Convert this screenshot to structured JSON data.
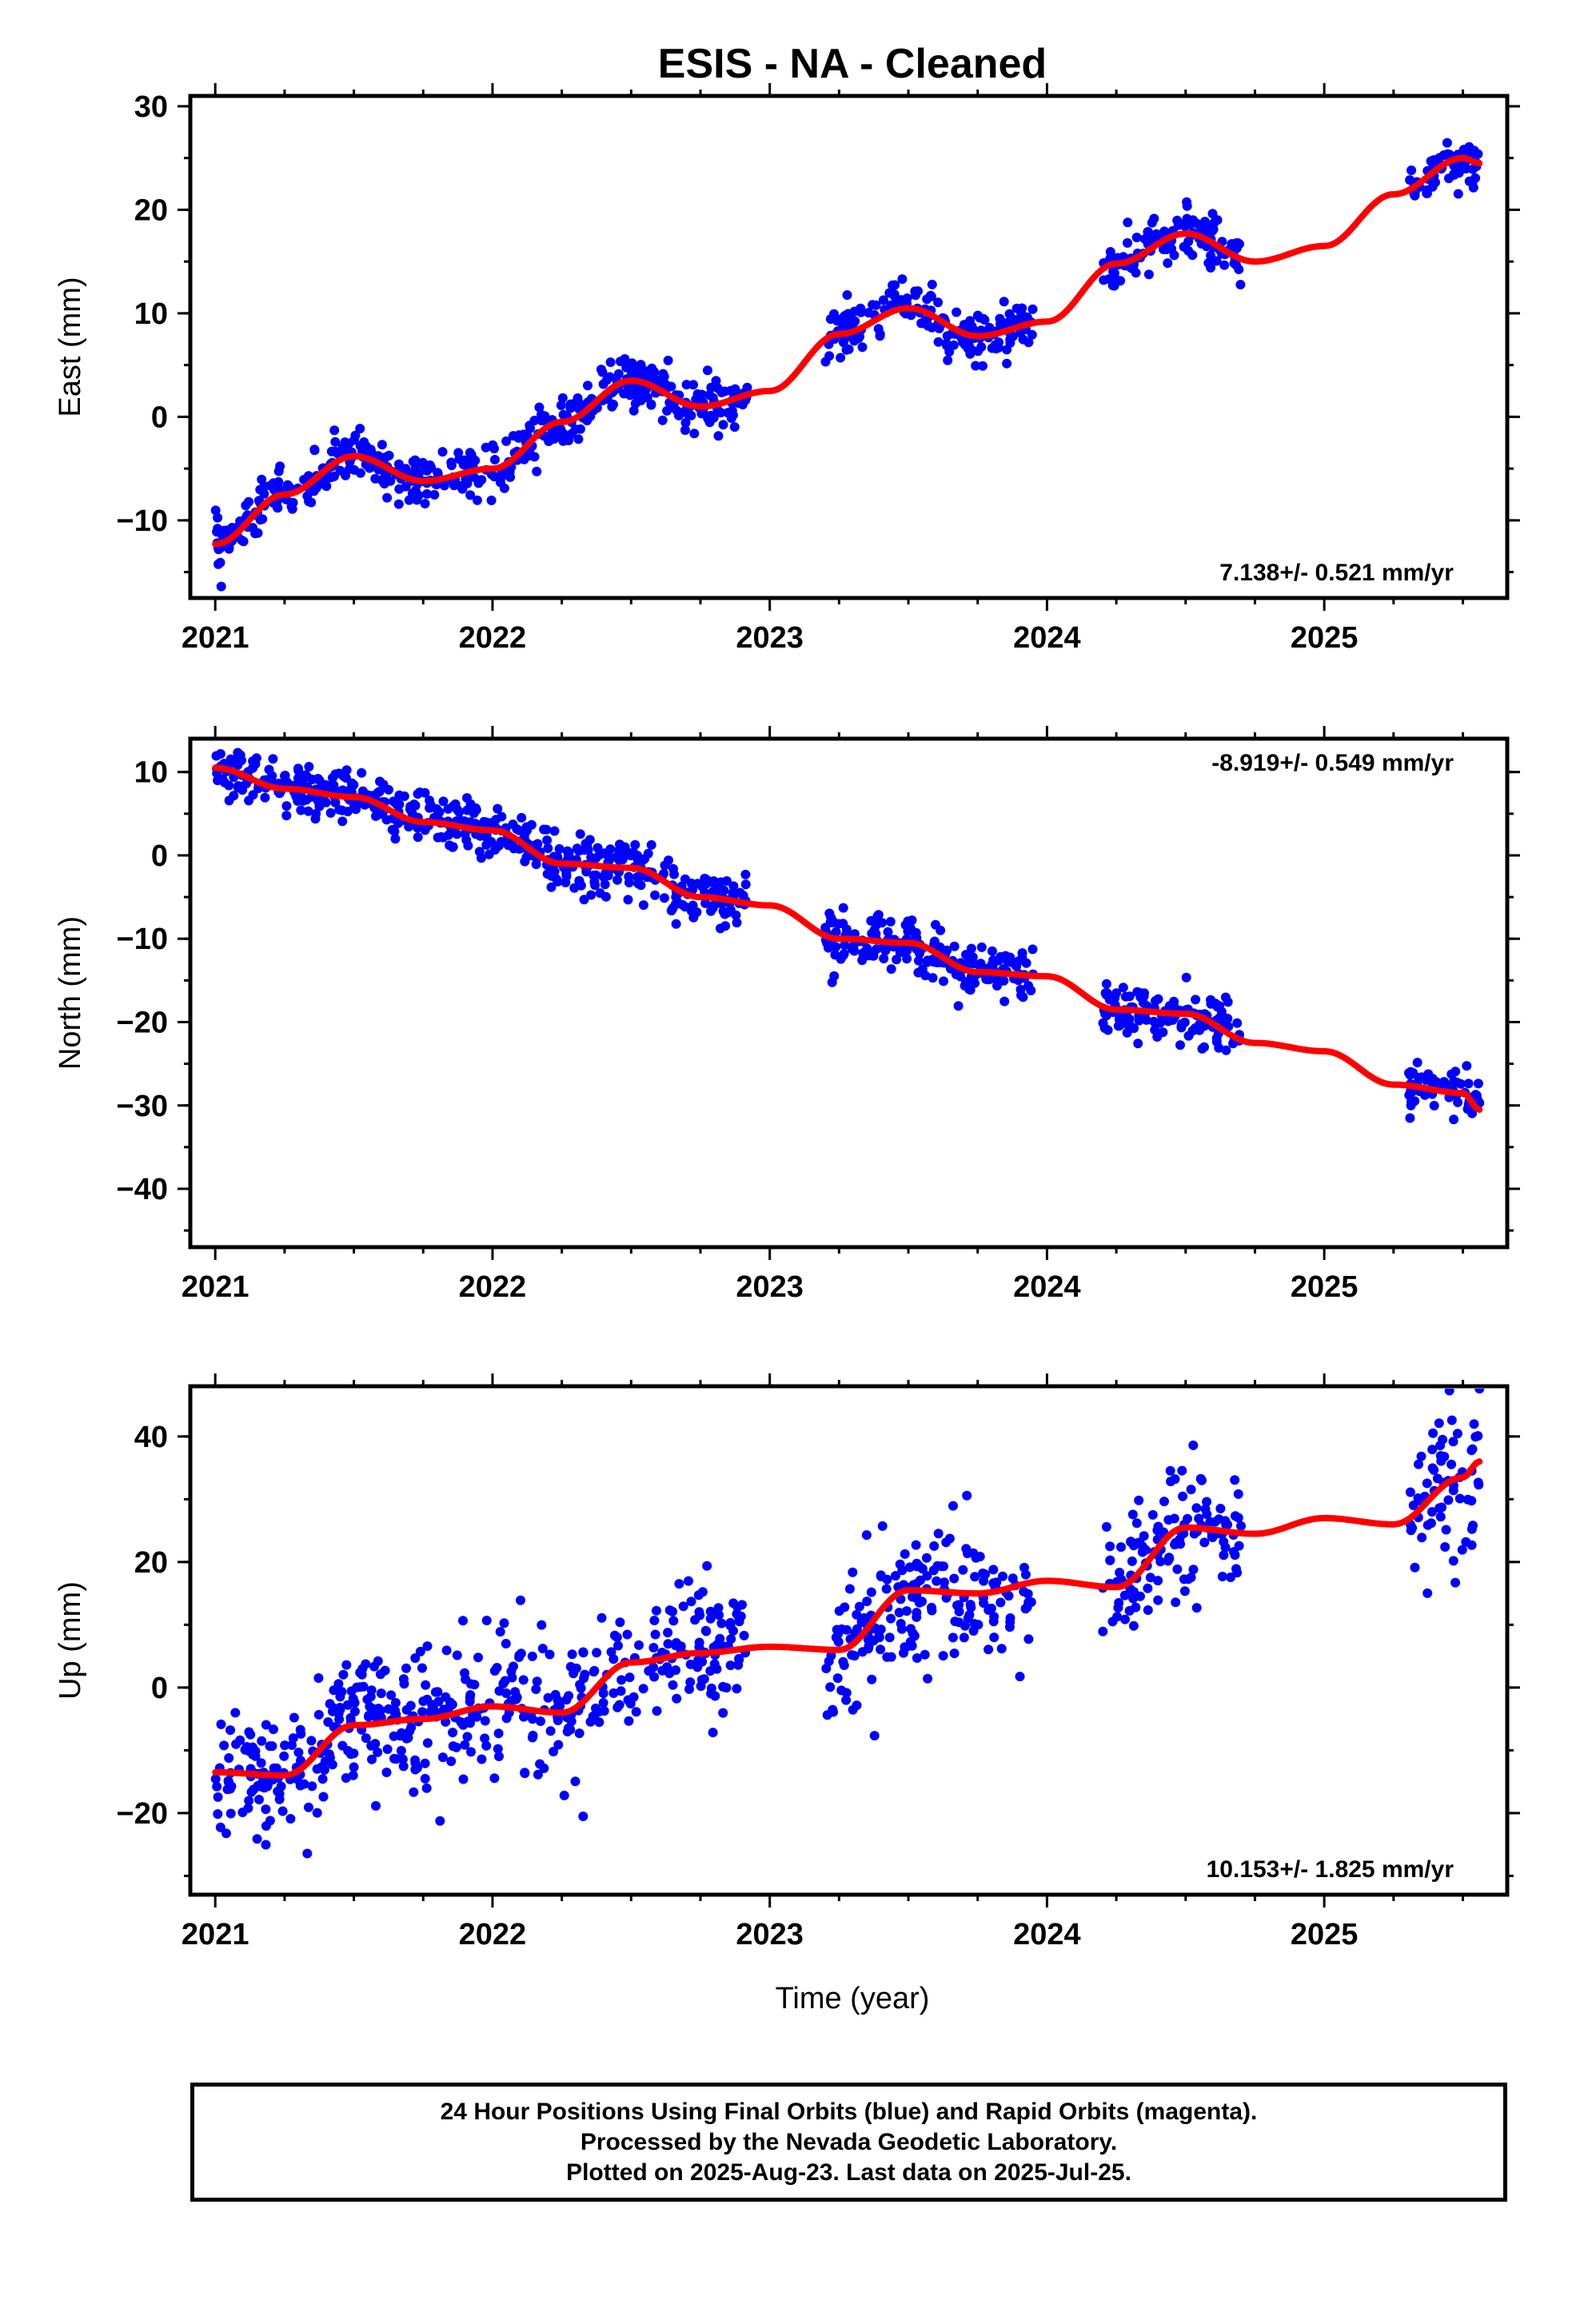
{
  "title": "ESIS  - NA - Cleaned",
  "xlabel": "Time (year)",
  "footer": {
    "line1": "24 Hour Positions Using Final Orbits (blue) and Rapid Orbits (magenta).",
    "line2": "Processed by the Nevada Geodetic Laboratory.",
    "line3": "Plotted on 2025-Aug-23. Last data on 2025-Jul-25."
  },
  "colors": {
    "points": "#0000ff",
    "fit": "#ff0000",
    "axes": "#000000"
  },
  "chart_data": [
    {
      "type": "scatter",
      "name": "east",
      "ylabel": "East (mm)",
      "rate": "7.138+/- 0.521 mm/yr",
      "rate_position": "bottom-right",
      "xlim": [
        2020.91,
        2025.66
      ],
      "ylim": [
        -17.5,
        31
      ],
      "xticks": [
        2021,
        2022,
        2023,
        2024,
        2025
      ],
      "yticks": [
        -10,
        0,
        10,
        20,
        30
      ],
      "ytick_labels": [
        "−10",
        "0",
        "10",
        "20",
        "30"
      ],
      "x_spans": [
        [
          2021.0,
          2022.92
        ],
        [
          2023.2,
          2023.95
        ],
        [
          2024.2,
          2024.7
        ],
        [
          2025.3,
          2025.56
        ]
      ],
      "fit": {
        "x": [
          2021.0,
          2021.25,
          2021.5,
          2021.75,
          2022.0,
          2022.25,
          2022.5,
          2022.75,
          2023.0,
          2023.25,
          2023.5,
          2023.75,
          2024.0,
          2024.25,
          2024.5,
          2024.75,
          2025.0,
          2025.25,
          2025.5,
          2025.56
        ],
        "y": [
          -12.3,
          -7.5,
          -3.8,
          -6.2,
          -5.0,
          -0.5,
          3.5,
          1.0,
          2.5,
          8.0,
          10.5,
          7.8,
          9.2,
          14.8,
          17.7,
          15.0,
          16.5,
          21.5,
          25.0,
          24.5
        ]
      },
      "scatter_sd": 1.2
    },
    {
      "type": "scatter",
      "name": "north",
      "ylabel": "North (mm)",
      "rate": "-8.919+/- 0.549 mm/yr",
      "rate_position": "top-right",
      "xlim": [
        2020.91,
        2025.66
      ],
      "ylim": [
        -47,
        14
      ],
      "xticks": [
        2021,
        2022,
        2023,
        2024,
        2025
      ],
      "yticks": [
        -40,
        -30,
        -20,
        -10,
        0,
        10
      ],
      "ytick_labels": [
        "−40",
        "−30",
        "−20",
        "−10",
        "0",
        "10"
      ],
      "x_spans": [
        [
          2021.0,
          2022.92
        ],
        [
          2023.2,
          2023.95
        ],
        [
          2024.2,
          2024.7
        ],
        [
          2025.3,
          2025.56
        ]
      ],
      "fit": {
        "x": [
          2021.0,
          2021.25,
          2021.5,
          2021.75,
          2022.0,
          2022.25,
          2022.5,
          2022.75,
          2023.0,
          2023.25,
          2023.5,
          2023.75,
          2024.0,
          2024.25,
          2024.5,
          2024.75,
          2025.0,
          2025.25,
          2025.5,
          2025.56
        ],
        "y": [
          10.5,
          8.0,
          7.0,
          4.0,
          3.0,
          -1.0,
          -1.5,
          -5.0,
          -6.0,
          -10.0,
          -10.5,
          -14.0,
          -14.5,
          -18.5,
          -19.0,
          -22.5,
          -23.5,
          -27.5,
          -28.5,
          -30.5
        ]
      },
      "scatter_sd": 1.6
    },
    {
      "type": "scatter",
      "name": "up",
      "ylabel": "Up (mm)",
      "rate": "10.153+/- 1.825 mm/yr",
      "rate_position": "bottom-right",
      "xlim": [
        2020.91,
        2025.66
      ],
      "ylim": [
        -33,
        48
      ],
      "xticks": [
        2021,
        2022,
        2023,
        2024,
        2025
      ],
      "yticks": [
        -20,
        0,
        20,
        40
      ],
      "ytick_labels": [
        "−20",
        "0",
        "20",
        "40"
      ],
      "x_spans": [
        [
          2021.0,
          2022.92
        ],
        [
          2023.2,
          2023.95
        ],
        [
          2024.2,
          2024.7
        ],
        [
          2025.3,
          2025.56
        ]
      ],
      "fit": {
        "x": [
          2021.0,
          2021.25,
          2021.5,
          2021.75,
          2022.0,
          2022.25,
          2022.5,
          2022.75,
          2023.0,
          2023.25,
          2023.5,
          2023.75,
          2024.0,
          2024.25,
          2024.5,
          2024.75,
          2025.0,
          2025.25,
          2025.5,
          2025.56
        ],
        "y": [
          -13.5,
          -14.0,
          -6.0,
          -5.0,
          -3.0,
          -4.0,
          4.0,
          5.5,
          6.5,
          6.0,
          15.5,
          15.0,
          17.0,
          16.0,
          25.5,
          24.5,
          27.0,
          26.0,
          33.5,
          36.0
        ]
      },
      "scatter_sd": 5.5
    }
  ]
}
